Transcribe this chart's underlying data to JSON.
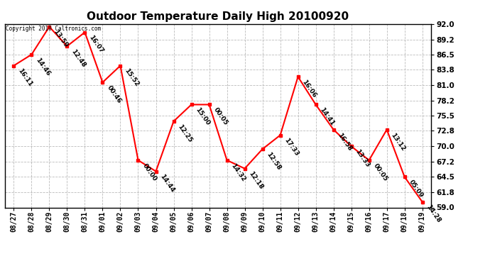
{
  "title": "Outdoor Temperature Daily High 20100920",
  "copyright_text": "Copyright 2010 Caltronics.com",
  "dates": [
    "08/27",
    "08/28",
    "08/29",
    "08/30",
    "08/31",
    "09/01",
    "09/02",
    "09/03",
    "09/04",
    "09/05",
    "09/06",
    "09/07",
    "09/08",
    "09/09",
    "09/10",
    "09/11",
    "09/12",
    "09/13",
    "09/14",
    "09/15",
    "09/16",
    "09/17",
    "09/18",
    "09/19"
  ],
  "values": [
    84.5,
    86.5,
    91.5,
    88.0,
    90.5,
    81.5,
    84.5,
    67.5,
    65.5,
    74.5,
    77.5,
    77.5,
    67.5,
    66.0,
    69.5,
    72.0,
    82.5,
    77.5,
    73.0,
    70.0,
    67.5,
    73.0,
    64.5,
    60.0
  ],
  "annotations": [
    "16:11",
    "14:46",
    "13:59",
    "12:48",
    "16:07",
    "00:46",
    "15:52",
    "00:00",
    "14:44",
    "12:25",
    "15:00",
    "00:05",
    "14:32",
    "12:18",
    "12:58",
    "17:33",
    "16:06",
    "14:41",
    "16:58",
    "13:33",
    "00:05",
    "13:12",
    "05:09",
    "14:28"
  ],
  "ylim": [
    59.0,
    92.0
  ],
  "yticks": [
    59.0,
    61.8,
    64.5,
    67.2,
    70.0,
    72.8,
    75.5,
    78.2,
    81.0,
    83.8,
    86.5,
    89.2,
    92.0
  ],
  "line_color": "red",
  "marker_color": "red",
  "marker": "s",
  "grid_color": "#aaaaaa",
  "background_color": "white",
  "annotation_fontsize": 6.5,
  "annotation_rotation": -55
}
